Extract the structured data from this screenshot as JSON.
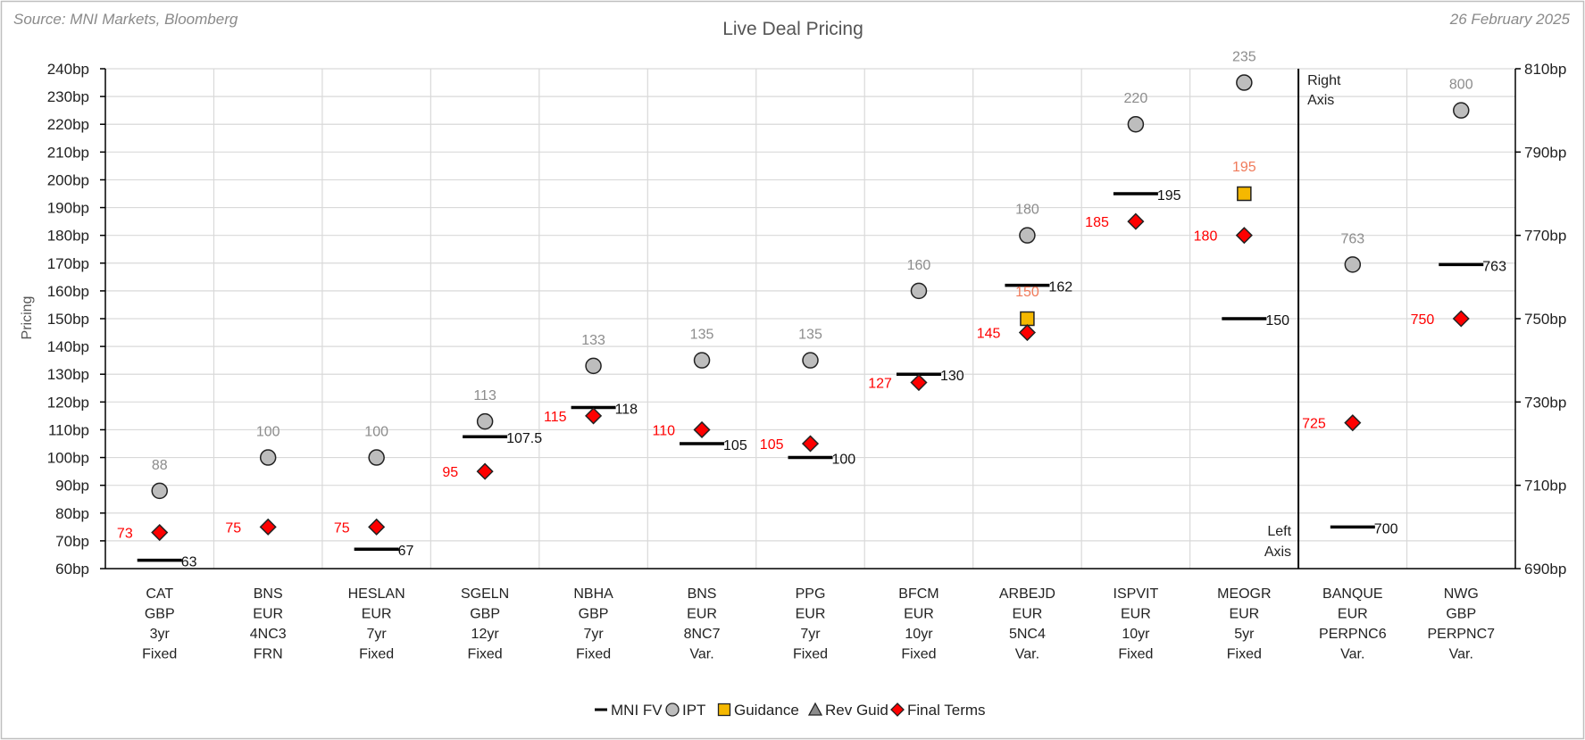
{
  "source": "Source: MNI Markets, Bloomberg",
  "date": "26 February 2025",
  "chart_data": {
    "type": "scatter",
    "title": "Live Deal Pricing",
    "ylabel": "Pricing",
    "left_axis": {
      "min": 60,
      "max": 240,
      "step": 10,
      "suffix": "bp"
    },
    "right_axis": {
      "min": 690,
      "max": 810,
      "step": 20,
      "suffix": "bp"
    },
    "right_axis_note": [
      "Right",
      "Axis"
    ],
    "left_axis_note": [
      "Left",
      "Axis"
    ],
    "legend": {
      "position": "bottom",
      "entries": [
        "MNI FV",
        "IPT",
        "Guidance",
        "Rev Guid",
        "Final Terms"
      ]
    },
    "categories": [
      {
        "lines": [
          "CAT",
          "GBP",
          "3yr",
          "Fixed"
        ],
        "axis": "left",
        "fv": 63,
        "ipt": 88,
        "guidance": null,
        "final": 73
      },
      {
        "lines": [
          "BNS",
          "EUR",
          "4NC3",
          "FRN"
        ],
        "axis": "left",
        "fv": null,
        "ipt": 100,
        "guidance": null,
        "final": 75
      },
      {
        "lines": [
          "HESLAN",
          "EUR",
          "7yr",
          "Fixed"
        ],
        "axis": "left",
        "fv": 67,
        "ipt": 100,
        "guidance": null,
        "final": 75
      },
      {
        "lines": [
          "SGELN",
          "GBP",
          "12yr",
          "Fixed"
        ],
        "axis": "left",
        "fv": 107.5,
        "ipt": 113,
        "guidance": null,
        "final": 95
      },
      {
        "lines": [
          "NBHA",
          "GBP",
          "7yr",
          "Fixed"
        ],
        "axis": "left",
        "fv": 118,
        "ipt": 133,
        "guidance": null,
        "final": 115
      },
      {
        "lines": [
          "BNS",
          "EUR",
          "8NC7",
          "Var."
        ],
        "axis": "left",
        "fv": 105,
        "ipt": 135,
        "guidance": null,
        "final": 110
      },
      {
        "lines": [
          "PPG",
          "EUR",
          "7yr",
          "Fixed"
        ],
        "axis": "left",
        "fv": 100,
        "ipt": 135,
        "guidance": null,
        "final": 105
      },
      {
        "lines": [
          "BFCM",
          "EUR",
          "10yr",
          "Fixed"
        ],
        "axis": "left",
        "fv": 130,
        "ipt": 160,
        "guidance": null,
        "final": 127
      },
      {
        "lines": [
          "ARBEJD",
          "EUR",
          "5NC4",
          "Var."
        ],
        "axis": "left",
        "fv": 162,
        "ipt": 180,
        "guidance": 150,
        "final": 145
      },
      {
        "lines": [
          "ISPVIT",
          "EUR",
          "10yr",
          "Fixed"
        ],
        "axis": "left",
        "fv": 195,
        "ipt": 220,
        "guidance": null,
        "final": 185
      },
      {
        "lines": [
          "MEOGR",
          "EUR",
          "5yr",
          "Fixed"
        ],
        "axis": "left",
        "fv": 150,
        "ipt": 235,
        "guidance": 195,
        "final": 180
      },
      {
        "lines": [
          "BANQUE",
          "EUR",
          "PERPNC6",
          "Var."
        ],
        "axis": "right",
        "fv": 700,
        "ipt": 763,
        "guidance": null,
        "final": 725
      },
      {
        "lines": [
          "NWG",
          "GBP",
          "PERPNC7",
          "Var."
        ],
        "axis": "right",
        "fv": 763,
        "ipt": 800,
        "guidance": null,
        "final": 750
      }
    ],
    "colors": {
      "ipt_fill": "#bdbdbd",
      "ipt_label": "#8c8c8c",
      "guidance_fill": "#f5b800",
      "guidance_label": "#f07a5a",
      "final_fill": "#ff0000",
      "final_label": "#ff0000",
      "fv_line": "#000000",
      "grid": "#d9d9d9",
      "revguid_fill": "#8c8c8c"
    }
  }
}
